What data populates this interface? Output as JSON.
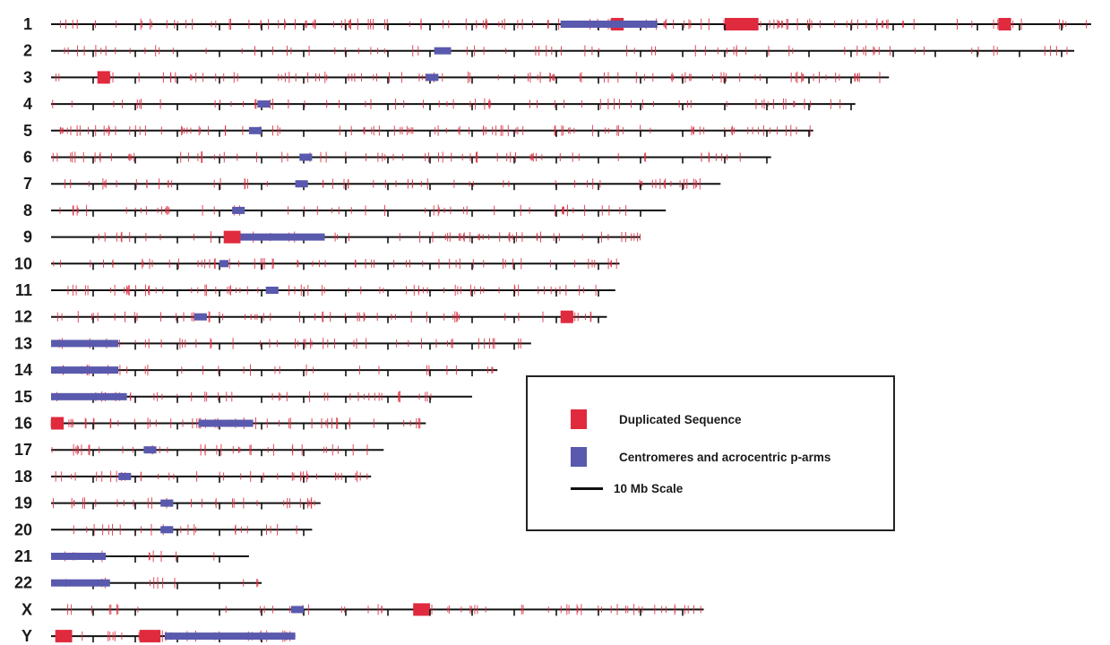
{
  "colors": {
    "duplicated": "#e02a3e",
    "centromere": "#5959ad",
    "axis": "#111111"
  },
  "chromosomes": [
    {
      "label": "1",
      "length_mb": 247,
      "centromere_mb": [
        121,
        144
      ],
      "hotspots_mb": [
        [
          133,
          136
        ],
        [
          160,
          168
        ],
        [
          225,
          228
        ]
      ],
      "density": 1.0
    },
    {
      "label": "2",
      "length_mb": 243,
      "centromere_mb": [
        91,
        95
      ],
      "hotspots_mb": [],
      "density": 0.55
    },
    {
      "label": "3",
      "length_mb": 199,
      "centromere_mb": [
        89,
        92
      ],
      "hotspots_mb": [
        [
          11,
          14
        ]
      ],
      "density": 0.85
    },
    {
      "label": "4",
      "length_mb": 191,
      "centromere_mb": [
        49,
        52
      ],
      "hotspots_mb": [],
      "density": 0.6
    },
    {
      "label": "5",
      "length_mb": 181,
      "centromere_mb": [
        47,
        50
      ],
      "hotspots_mb": [],
      "density": 1.0
    },
    {
      "label": "6",
      "length_mb": 171,
      "centromere_mb": [
        59,
        62
      ],
      "hotspots_mb": [],
      "density": 0.75
    },
    {
      "label": "7",
      "length_mb": 159,
      "centromere_mb": [
        58,
        61
      ],
      "hotspots_mb": [],
      "density": 0.7
    },
    {
      "label": "8",
      "length_mb": 146,
      "centromere_mb": [
        43,
        46
      ],
      "hotspots_mb": [],
      "density": 0.65
    },
    {
      "label": "9",
      "length_mb": 140,
      "centromere_mb": [
        45,
        65
      ],
      "hotspots_mb": [
        [
          41,
          45
        ]
      ],
      "density": 0.75
    },
    {
      "label": "10",
      "length_mb": 135,
      "centromere_mb": [
        40,
        42
      ],
      "hotspots_mb": [],
      "density": 0.8
    },
    {
      "label": "11",
      "length_mb": 134,
      "centromere_mb": [
        51,
        54
      ],
      "hotspots_mb": [],
      "density": 0.95
    },
    {
      "label": "12",
      "length_mb": 132,
      "centromere_mb": [
        34,
        37
      ],
      "hotspots_mb": [
        [
          121,
          124
        ]
      ],
      "density": 0.8
    },
    {
      "label": "13",
      "length_mb": 114,
      "centromere_mb": [
        0,
        16
      ],
      "hotspots_mb": [],
      "density": 0.75
    },
    {
      "label": "14",
      "length_mb": 106,
      "centromere_mb": [
        0,
        16
      ],
      "hotspots_mb": [],
      "density": 0.55
    },
    {
      "label": "15",
      "length_mb": 100,
      "centromere_mb": [
        0,
        18
      ],
      "hotspots_mb": [],
      "density": 0.75
    },
    {
      "label": "16",
      "length_mb": 89,
      "centromere_mb": [
        35,
        48
      ],
      "hotspots_mb": [
        [
          0,
          3
        ]
      ],
      "density": 1.0
    },
    {
      "label": "17",
      "length_mb": 79,
      "centromere_mb": [
        22,
        25
      ],
      "hotspots_mb": [],
      "density": 0.8
    },
    {
      "label": "18",
      "length_mb": 76,
      "centromere_mb": [
        16,
        19
      ],
      "hotspots_mb": [],
      "density": 0.95
    },
    {
      "label": "19",
      "length_mb": 64,
      "centromere_mb": [
        26,
        29
      ],
      "hotspots_mb": [],
      "density": 0.9
    },
    {
      "label": "20",
      "length_mb": 62,
      "centromere_mb": [
        26,
        29
      ],
      "hotspots_mb": [],
      "density": 0.65
    },
    {
      "label": "21",
      "length_mb": 47,
      "centromere_mb": [
        0,
        13
      ],
      "hotspots_mb": [],
      "density": 0.4
    },
    {
      "label": "22",
      "length_mb": 50,
      "centromere_mb": [
        0,
        14
      ],
      "hotspots_mb": [],
      "density": 0.4
    },
    {
      "label": "X",
      "length_mb": 155,
      "centromere_mb": [
        57,
        60
      ],
      "hotspots_mb": [
        [
          86,
          90
        ]
      ],
      "density": 0.7
    },
    {
      "label": "Y",
      "length_mb": 58,
      "centromere_mb": [
        27,
        58
      ],
      "hotspots_mb": [
        [
          1,
          5
        ],
        [
          21,
          26
        ]
      ],
      "density": 1.0
    }
  ],
  "legend": {
    "duplicated_label": "Duplicated Sequence",
    "centromere_label": "Centromeres and acrocentric p-arms",
    "scale_label": "10 Mb Scale",
    "scale_mb": 10
  }
}
